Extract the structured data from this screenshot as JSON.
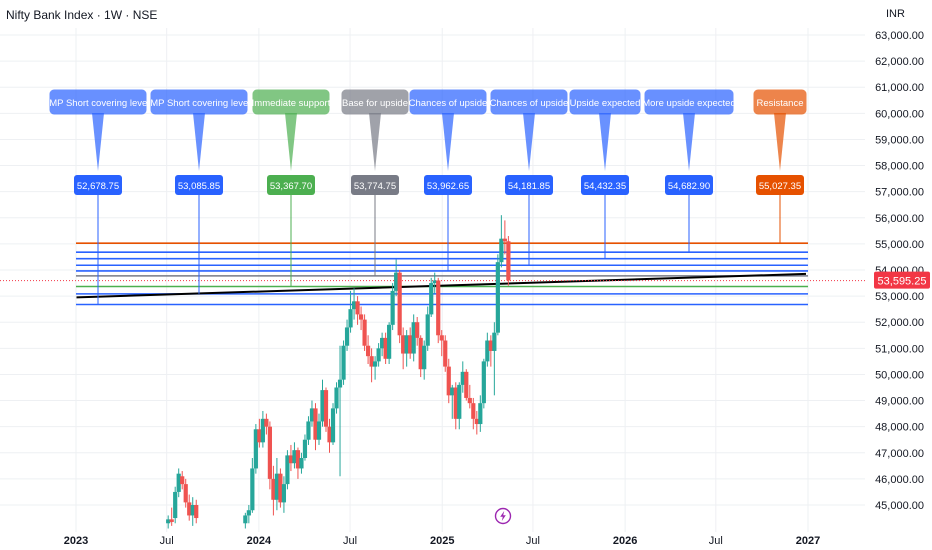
{
  "header": {
    "title": "Nifty Bank Index · 1W · NSE",
    "currency": "INR"
  },
  "colors": {
    "up": "#26a69a",
    "down": "#ef5350",
    "grid": "#eef0f3",
    "axis_text": "#131722",
    "blue": "#2962ff",
    "green": "#4caf50",
    "grey": "#787b86",
    "orange": "#e65100",
    "trend": "#000000",
    "price_tag": "#f23645"
  },
  "chart_data": {
    "type": "candlestick",
    "symbol": "Nifty Bank Index",
    "interval": "1W",
    "exchange": "NSE",
    "x_tick_labels": [
      "2023",
      "Jul",
      "2024",
      "Jul",
      "2025",
      "Jul",
      "2026",
      "Jul",
      "2027"
    ],
    "y_tick_labels": [
      "45,000.00",
      "46,000.00",
      "47,000.00",
      "48,000.00",
      "49,000.00",
      "50,000.00",
      "51,000.00",
      "52,000.00",
      "53,000.00",
      "54,000.00",
      "55,000.00",
      "56,000.00",
      "57,000.00",
      "58,000.00",
      "59,000.00",
      "60,000.00",
      "61,000.00",
      "62,000.00",
      "63,000.00"
    ],
    "y_ticks": [
      45000,
      46000,
      47000,
      48000,
      49000,
      50000,
      51000,
      52000,
      53000,
      54000,
      55000,
      56000,
      57000,
      58000,
      59000,
      60000,
      61000,
      62000,
      63000
    ],
    "ylim": [
      44200,
      63800
    ],
    "current_price": 53595.25,
    "current_price_label": "53,595.25",
    "levels": [
      {
        "label": "IMP Short covering level",
        "value": 52678.75,
        "value_label": "52,678.75",
        "color": "blue"
      },
      {
        "label": "IMP Short covering level",
        "value": 53085.85,
        "value_label": "53,085.85",
        "color": "blue"
      },
      {
        "label": "Immediate support",
        "value": 53367.7,
        "value_label": "53,367.70",
        "color": "green"
      },
      {
        "label": "Base for upside",
        "value": 53774.75,
        "value_label": "53,774.75",
        "color": "grey"
      },
      {
        "label": "Chances of upside",
        "value": 53962.65,
        "value_label": "53,962.65",
        "color": "blue"
      },
      {
        "label": "Chances of upside",
        "value": 54181.85,
        "value_label": "54,181.85",
        "color": "blue"
      },
      {
        "label": "Upside expected",
        "value": 54432.35,
        "value_label": "54,432.35",
        "color": "blue"
      },
      {
        "label": "More upside expected",
        "value": 54682.9,
        "value_label": "54,682.90",
        "color": "blue"
      },
      {
        "label": "Resistance",
        "value": 55027.35,
        "value_label": "55,027.35",
        "color": "orange"
      }
    ],
    "trendline": {
      "start": {
        "date": "2023-01-02",
        "value": 52950
      },
      "end": {
        "date": "2026-12-28",
        "value": 53850
      }
    },
    "candles": [
      {
        "date": "2023-06-26",
        "open": 44300,
        "high": 44600,
        "low": 44100,
        "close": 44450
      },
      {
        "date": "2023-07-03",
        "open": 44450,
        "high": 44900,
        "low": 44200,
        "close": 44350
      },
      {
        "date": "2023-07-10",
        "open": 44500,
        "high": 45700,
        "low": 44300,
        "close": 45500
      },
      {
        "date": "2023-07-17",
        "open": 45500,
        "high": 46400,
        "low": 45300,
        "close": 46200
      },
      {
        "date": "2023-07-24",
        "open": 46100,
        "high": 46300,
        "low": 45600,
        "close": 45800
      },
      {
        "date": "2023-07-31",
        "open": 45800,
        "high": 46000,
        "low": 44900,
        "close": 45100
      },
      {
        "date": "2023-08-07",
        "open": 45100,
        "high": 45400,
        "low": 44400,
        "close": 44600
      },
      {
        "date": "2023-08-14",
        "open": 44600,
        "high": 45300,
        "low": 44200,
        "close": 45000
      },
      {
        "date": "2023-08-21",
        "open": 45000,
        "high": 45200,
        "low": 44300,
        "close": 44500
      },
      {
        "date": "2023-11-27",
        "open": 44300,
        "high": 44700,
        "low": 44100,
        "close": 44600
      },
      {
        "date": "2023-12-04",
        "open": 44600,
        "high": 45000,
        "low": 44300,
        "close": 44800
      },
      {
        "date": "2023-12-11",
        "open": 44800,
        "high": 46800,
        "low": 44700,
        "close": 46400
      },
      {
        "date": "2023-12-18",
        "open": 46400,
        "high": 48100,
        "low": 46200,
        "close": 47900
      },
      {
        "date": "2023-12-25",
        "open": 47900,
        "high": 48300,
        "low": 47200,
        "close": 47400
      },
      {
        "date": "2024-01-01",
        "open": 47400,
        "high": 48600,
        "low": 47200,
        "close": 48300
      },
      {
        "date": "2024-01-08",
        "open": 48300,
        "high": 48500,
        "low": 47700,
        "close": 48000
      },
      {
        "date": "2024-01-15",
        "open": 48000,
        "high": 48200,
        "low": 45600,
        "close": 46000
      },
      {
        "date": "2024-01-22",
        "open": 46000,
        "high": 46500,
        "low": 44600,
        "close": 45200
      },
      {
        "date": "2024-01-29",
        "open": 45200,
        "high": 46800,
        "low": 44800,
        "close": 46200
      },
      {
        "date": "2024-02-05",
        "open": 46200,
        "high": 46400,
        "low": 44900,
        "close": 45100
      },
      {
        "date": "2024-02-12",
        "open": 45100,
        "high": 46100,
        "low": 44700,
        "close": 45800
      },
      {
        "date": "2024-02-19",
        "open": 45800,
        "high": 47100,
        "low": 45600,
        "close": 46900
      },
      {
        "date": "2024-02-26",
        "open": 46900,
        "high": 47300,
        "low": 46300,
        "close": 46600
      },
      {
        "date": "2024-03-04",
        "open": 46600,
        "high": 47400,
        "low": 46400,
        "close": 47100
      },
      {
        "date": "2024-03-11",
        "open": 47100,
        "high": 47200,
        "low": 46000,
        "close": 46400
      },
      {
        "date": "2024-03-18",
        "open": 46400,
        "high": 47000,
        "low": 46200,
        "close": 46800
      },
      {
        "date": "2024-03-25",
        "open": 46800,
        "high": 47700,
        "low": 46700,
        "close": 47500
      },
      {
        "date": "2024-04-01",
        "open": 47500,
        "high": 48400,
        "low": 47300,
        "close": 48200
      },
      {
        "date": "2024-04-08",
        "open": 48200,
        "high": 49000,
        "low": 48000,
        "close": 48700
      },
      {
        "date": "2024-04-15",
        "open": 48700,
        "high": 48900,
        "low": 47100,
        "close": 47500
      },
      {
        "date": "2024-04-22",
        "open": 47500,
        "high": 48500,
        "low": 47300,
        "close": 48200
      },
      {
        "date": "2024-04-29",
        "open": 48200,
        "high": 49800,
        "low": 48000,
        "close": 49400
      },
      {
        "date": "2024-05-06",
        "open": 49400,
        "high": 49500,
        "low": 47800,
        "close": 48000
      },
      {
        "date": "2024-05-13",
        "open": 48000,
        "high": 48300,
        "low": 47000,
        "close": 47400
      },
      {
        "date": "2024-05-20",
        "open": 47400,
        "high": 48900,
        "low": 47300,
        "close": 48700
      },
      {
        "date": "2024-05-27",
        "open": 48700,
        "high": 49700,
        "low": 48500,
        "close": 49500
      },
      {
        "date": "2024-06-03",
        "open": 49500,
        "high": 51100,
        "low": 46100,
        "close": 49800
      },
      {
        "date": "2024-06-10",
        "open": 49800,
        "high": 51300,
        "low": 49600,
        "close": 51100
      },
      {
        "date": "2024-06-17",
        "open": 51100,
        "high": 52100,
        "low": 50900,
        "close": 51800
      },
      {
        "date": "2024-06-24",
        "open": 51800,
        "high": 53200,
        "low": 51600,
        "close": 52500
      },
      {
        "date": "2024-07-01",
        "open": 52500,
        "high": 53300,
        "low": 52100,
        "close": 52800
      },
      {
        "date": "2024-07-08",
        "open": 52800,
        "high": 53000,
        "low": 51900,
        "close": 52300
      },
      {
        "date": "2024-07-15",
        "open": 52300,
        "high": 52600,
        "low": 51700,
        "close": 52100
      },
      {
        "date": "2024-07-22",
        "open": 52100,
        "high": 52300,
        "low": 50900,
        "close": 51100
      },
      {
        "date": "2024-07-29",
        "open": 51100,
        "high": 51500,
        "low": 50400,
        "close": 50700
      },
      {
        "date": "2024-08-05",
        "open": 50700,
        "high": 51000,
        "low": 49700,
        "close": 50300
      },
      {
        "date": "2024-08-12",
        "open": 50300,
        "high": 50700,
        "low": 49800,
        "close": 50500
      },
      {
        "date": "2024-08-19",
        "open": 50500,
        "high": 51200,
        "low": 50300,
        "close": 51000
      },
      {
        "date": "2024-08-26",
        "open": 51000,
        "high": 51600,
        "low": 50700,
        "close": 51400
      },
      {
        "date": "2024-09-02",
        "open": 51400,
        "high": 51600,
        "low": 50400,
        "close": 50600
      },
      {
        "date": "2024-09-09",
        "open": 50600,
        "high": 52000,
        "low": 50400,
        "close": 51900
      },
      {
        "date": "2024-09-16",
        "open": 51900,
        "high": 53500,
        "low": 51700,
        "close": 53200
      },
      {
        "date": "2024-09-23",
        "open": 53200,
        "high": 54400,
        "low": 53000,
        "close": 53900
      },
      {
        "date": "2024-09-30",
        "open": 53900,
        "high": 54000,
        "low": 51200,
        "close": 51500
      },
      {
        "date": "2024-10-07",
        "open": 51500,
        "high": 51800,
        "low": 50200,
        "close": 50800
      },
      {
        "date": "2024-10-14",
        "open": 50800,
        "high": 51700,
        "low": 50300,
        "close": 51500
      },
      {
        "date": "2024-10-21",
        "open": 51500,
        "high": 51800,
        "low": 50600,
        "close": 50800
      },
      {
        "date": "2024-10-28",
        "open": 50800,
        "high": 52300,
        "low": 50500,
        "close": 52000
      },
      {
        "date": "2024-11-04",
        "open": 52000,
        "high": 52200,
        "low": 51100,
        "close": 51400
      },
      {
        "date": "2024-11-11",
        "open": 51400,
        "high": 51500,
        "low": 49900,
        "close": 50200
      },
      {
        "date": "2024-11-18",
        "open": 50200,
        "high": 51300,
        "low": 49800,
        "close": 51100
      },
      {
        "date": "2024-11-25",
        "open": 51100,
        "high": 52600,
        "low": 50900,
        "close": 52300
      },
      {
        "date": "2024-12-02",
        "open": 52300,
        "high": 53700,
        "low": 52200,
        "close": 53500
      },
      {
        "date": "2024-12-09",
        "open": 53500,
        "high": 53900,
        "low": 53100,
        "close": 53600
      },
      {
        "date": "2024-12-16",
        "open": 53600,
        "high": 53700,
        "low": 51200,
        "close": 51500
      },
      {
        "date": "2024-12-23",
        "open": 51500,
        "high": 51700,
        "low": 50700,
        "close": 51300
      },
      {
        "date": "2024-12-30",
        "open": 51300,
        "high": 51500,
        "low": 50100,
        "close": 50300
      },
      {
        "date": "2025-01-06",
        "open": 50300,
        "high": 50600,
        "low": 48900,
        "close": 49200
      },
      {
        "date": "2025-01-13",
        "open": 49200,
        "high": 49600,
        "low": 48300,
        "close": 49500
      },
      {
        "date": "2025-01-20",
        "open": 49500,
        "high": 49700,
        "low": 47900,
        "close": 48300
      },
      {
        "date": "2025-01-27",
        "open": 48300,
        "high": 49700,
        "low": 47900,
        "close": 49600
      },
      {
        "date": "2025-02-03",
        "open": 49600,
        "high": 50500,
        "low": 49300,
        "close": 50100
      },
      {
        "date": "2025-02-10",
        "open": 50100,
        "high": 50200,
        "low": 49000,
        "close": 49100
      },
      {
        "date": "2025-02-17",
        "open": 49100,
        "high": 49600,
        "low": 48700,
        "close": 48900
      },
      {
        "date": "2025-02-24",
        "open": 48900,
        "high": 49100,
        "low": 47900,
        "close": 48300
      },
      {
        "date": "2025-03-03",
        "open": 48300,
        "high": 48600,
        "low": 47700,
        "close": 48100
      },
      {
        "date": "2025-03-10",
        "open": 48100,
        "high": 49200,
        "low": 47800,
        "close": 48900
      },
      {
        "date": "2025-03-17",
        "open": 48900,
        "high": 50600,
        "low": 48700,
        "close": 50500
      },
      {
        "date": "2025-03-24",
        "open": 50500,
        "high": 51600,
        "low": 50300,
        "close": 51300
      },
      {
        "date": "2025-03-31",
        "open": 51300,
        "high": 51500,
        "low": 50300,
        "close": 50900
      },
      {
        "date": "2025-04-07",
        "open": 50900,
        "high": 52000,
        "low": 49200,
        "close": 51600
      },
      {
        "date": "2025-04-14",
        "open": 51600,
        "high": 54600,
        "low": 51500,
        "close": 54300
      },
      {
        "date": "2025-04-21",
        "open": 54300,
        "high": 56100,
        "low": 54100,
        "close": 55200
      },
      {
        "date": "2025-04-28",
        "open": 55200,
        "high": 55900,
        "low": 54600,
        "close": 55100
      },
      {
        "date": "2025-05-05",
        "open": 55100,
        "high": 55300,
        "low": 53400,
        "close": 53600
      }
    ]
  }
}
